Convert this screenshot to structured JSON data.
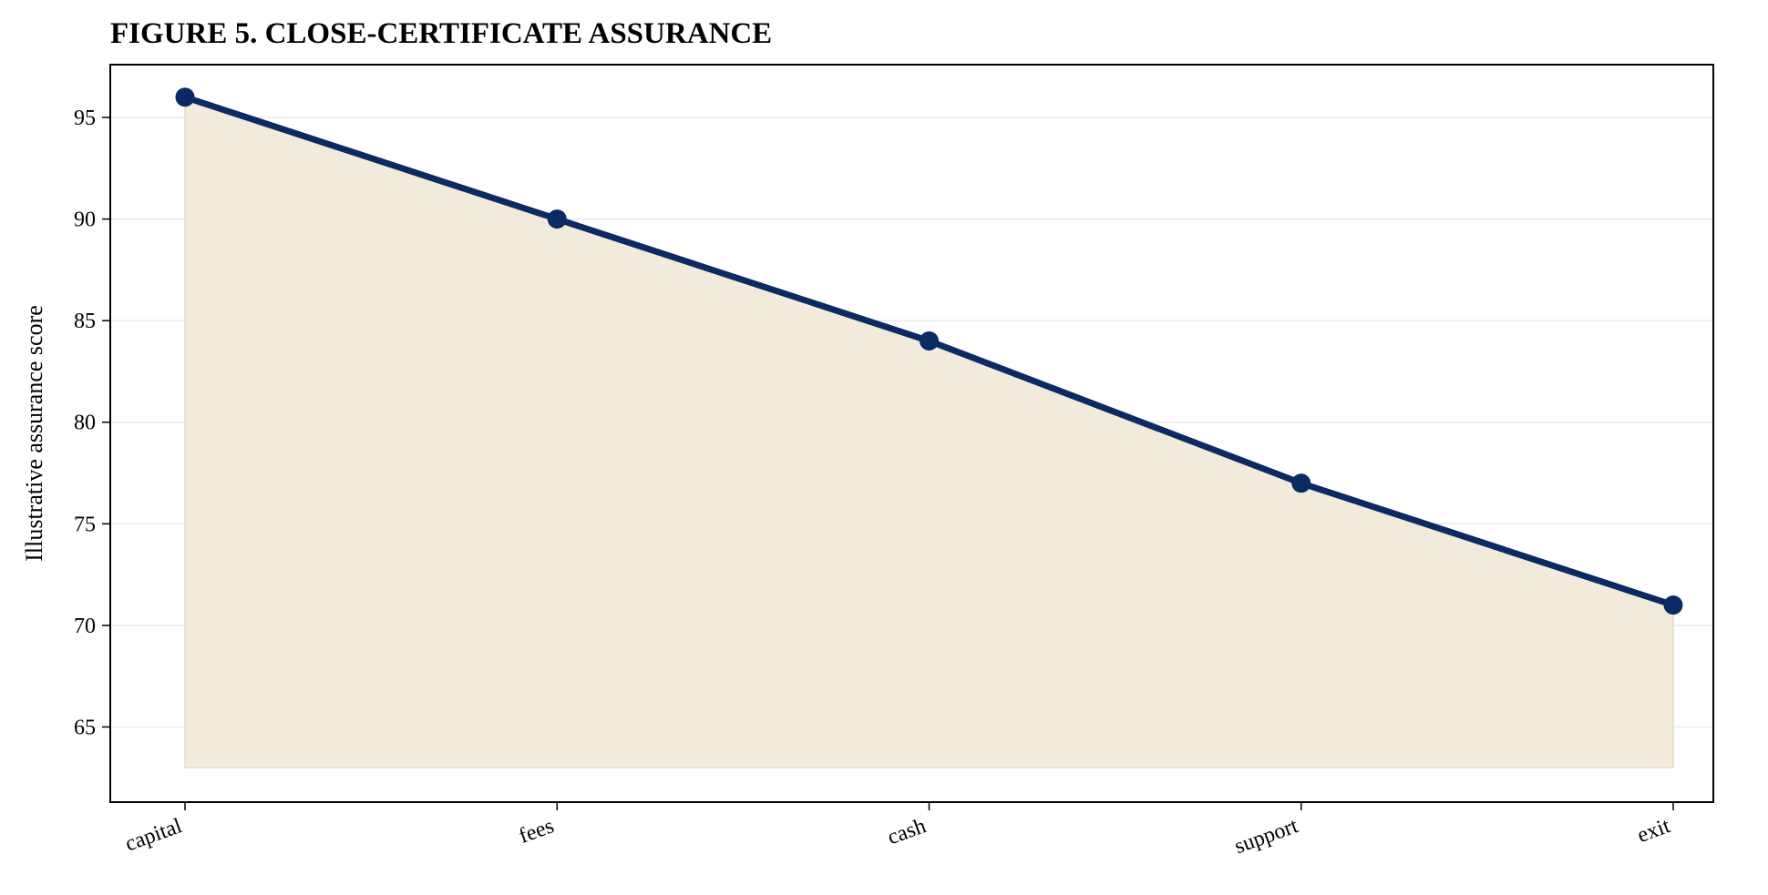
{
  "chart_data": {
    "type": "area",
    "title": "FIGURE 5. CLOSE-CERTIFICATE ASSURANCE",
    "xlabel": "",
    "ylabel": "Illustrative assurance score",
    "categories": [
      "capital",
      "fees",
      "cash",
      "support",
      "exit"
    ],
    "series": [
      {
        "values": [
          96,
          90,
          84,
          77,
          71
        ]
      }
    ],
    "fill_baseline": 63,
    "ylim": [
      61.3,
      97.6
    ],
    "yticks": [
      65,
      70,
      75,
      80,
      85,
      90,
      95
    ],
    "grid": "horizontal",
    "colors": {
      "line": "#0b2a63",
      "fill": "#f2ebdc",
      "fill_edge": "#e8dcc0",
      "grid": "#ebebeb"
    }
  }
}
